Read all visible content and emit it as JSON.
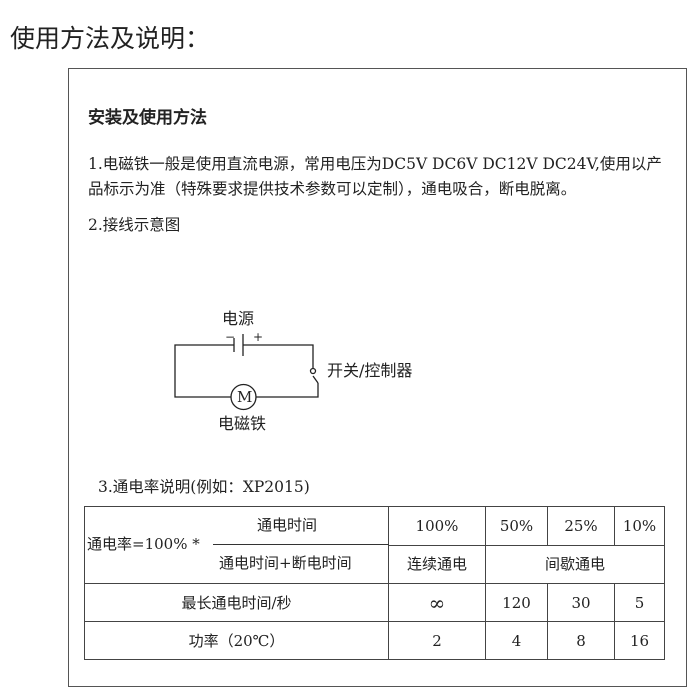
{
  "page_title": "使用方法及说明：",
  "section": {
    "heading": "安装及使用方法",
    "para1": "1.电磁铁一般是使用直流电源，常用电压为DC5V DC6V DC12V DC24V,使用以产品标示为准（特殊要求提供技术参数可以定制），通电吸合，断电脱离。",
    "step2": "2.接线示意图",
    "diagram": {
      "power_label": "电源",
      "minus": "−",
      "plus": "+",
      "switch_label": "开关/控制器",
      "motor_symbol": "M",
      "magnet_label": "电磁铁"
    },
    "step3": "3.通电率说明(例如：XP2015)"
  },
  "table": {
    "formula_prefix": "通电率=100% *",
    "numerator": "通电时间",
    "denominator": "通电时间+断电时间",
    "rates": [
      "100%",
      "50%",
      "25%",
      "10%"
    ],
    "continuous": "连续通电",
    "intermittent": "间歇通电",
    "rows": [
      {
        "label": "最长通电时间/秒",
        "values": [
          "∞",
          "120",
          "30",
          "5"
        ]
      },
      {
        "label": "功率（20℃）",
        "values": [
          "2",
          "4",
          "8",
          "16"
        ]
      }
    ]
  }
}
